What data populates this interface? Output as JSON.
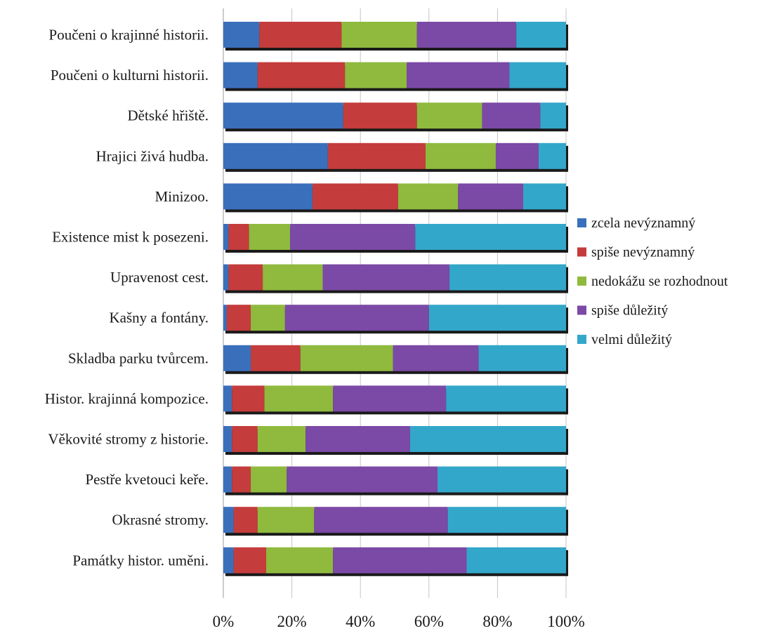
{
  "chart_data": {
    "type": "bar",
    "orientation": "horizontal",
    "stacked": "percent",
    "title": "",
    "xlabel": "",
    "ylabel": "",
    "xlim": [
      0,
      100
    ],
    "x_ticks": [
      "0%",
      "20%",
      "40%",
      "60%",
      "80%",
      "100%"
    ],
    "grid": true,
    "legend_position": "right",
    "categories": [
      "Poučeni o krajinné historii.",
      "Poučeni o kulturni historii.",
      "Dětské hřiště.",
      "Hrajici živá hudba.",
      "Minizoo.",
      "Existence mist k posezeni.",
      "Upravenost cest.",
      "Kašny a fontány.",
      "Skladba parku tvůrcem.",
      "Histor. krajinná kompozice.",
      "Věkovité stromy z historie.",
      "Pestře kvetouci keře.",
      "Okrasné stromy.",
      "Památky histor. uměni."
    ],
    "series": [
      {
        "name": "zcela nevýznamný",
        "color": "#3a6fbc",
        "values": [
          10.5,
          10.0,
          35.0,
          30.5,
          26.0,
          1.5,
          1.5,
          1.0,
          8.0,
          2.5,
          2.5,
          2.5,
          3.0,
          3.0
        ]
      },
      {
        "name": "spiše nevýznamný",
        "color": "#c43c3c",
        "values": [
          24.0,
          25.5,
          21.5,
          28.5,
          25.0,
          6.0,
          10.0,
          7.0,
          14.5,
          9.5,
          7.5,
          5.5,
          7.0,
          9.5
        ]
      },
      {
        "name": "nedokážu se rozhodnout",
        "color": "#8fba3e",
        "values": [
          22.0,
          18.0,
          19.0,
          20.5,
          17.5,
          12.0,
          17.5,
          10.0,
          27.0,
          20.0,
          14.0,
          10.5,
          16.5,
          19.5
        ]
      },
      {
        "name": "spiše důležitý",
        "color": "#7b49a6",
        "values": [
          29.0,
          30.0,
          17.0,
          12.5,
          19.0,
          36.5,
          37.0,
          42.0,
          25.0,
          33.0,
          30.5,
          44.0,
          39.0,
          39.0
        ]
      },
      {
        "name": "velmi důležitý",
        "color": "#33a7c9",
        "values": [
          14.5,
          16.5,
          7.5,
          8.0,
          12.5,
          44.0,
          34.0,
          40.0,
          25.5,
          35.0,
          45.5,
          37.5,
          34.5,
          29.0
        ]
      }
    ]
  }
}
